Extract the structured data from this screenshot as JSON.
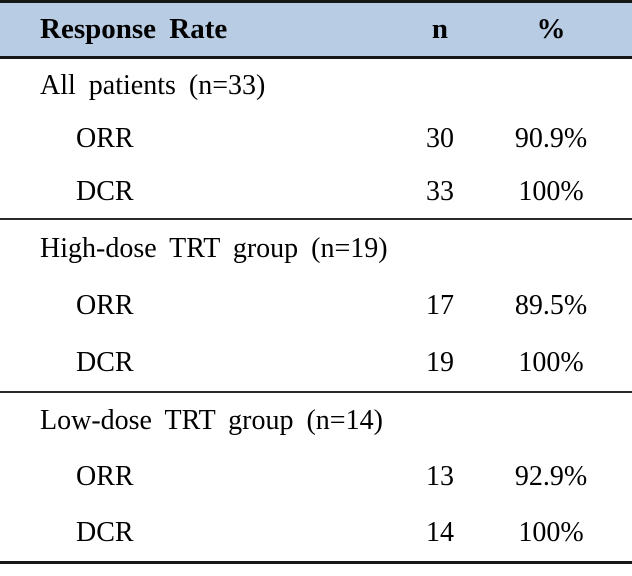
{
  "table": {
    "header": {
      "title": "Response Rate",
      "col_n": "n",
      "col_pct": "%"
    },
    "header_bg": "#b8cce4",
    "rule_color": "#161616",
    "sections": [
      {
        "label": "All patients (n=33)",
        "rows": [
          {
            "label": "ORR",
            "n": "30",
            "pct": "90.9%"
          },
          {
            "label": "DCR",
            "n": "33",
            "pct": "100%"
          }
        ]
      },
      {
        "label": "High-dose TRT group (n=19)",
        "rows": [
          {
            "label": "ORR",
            "n": "17",
            "pct": "89.5%"
          },
          {
            "label": "DCR",
            "n": "19",
            "pct": "100%"
          }
        ]
      },
      {
        "label": "Low-dose TRT group (n=14)",
        "rows": [
          {
            "label": "ORR",
            "n": "13",
            "pct": "92.9%"
          },
          {
            "label": "DCR",
            "n": "14",
            "pct": "100%"
          }
        ]
      }
    ]
  },
  "chart_data": {
    "type": "table",
    "title": "Response Rate",
    "columns": [
      "Response Rate",
      "n",
      "%"
    ],
    "rows": [
      [
        "All patients (n=33)",
        "",
        ""
      ],
      [
        "ORR",
        30,
        "90.9%"
      ],
      [
        "DCR",
        33,
        "100%"
      ],
      [
        "High-dose TRT group (n=19)",
        "",
        ""
      ],
      [
        "ORR",
        17,
        "89.5%"
      ],
      [
        "DCR",
        19,
        "100%"
      ],
      [
        "Low-dose TRT group (n=14)",
        "",
        ""
      ],
      [
        "ORR",
        13,
        "92.9%"
      ],
      [
        "DCR",
        14,
        "100%"
      ]
    ]
  }
}
